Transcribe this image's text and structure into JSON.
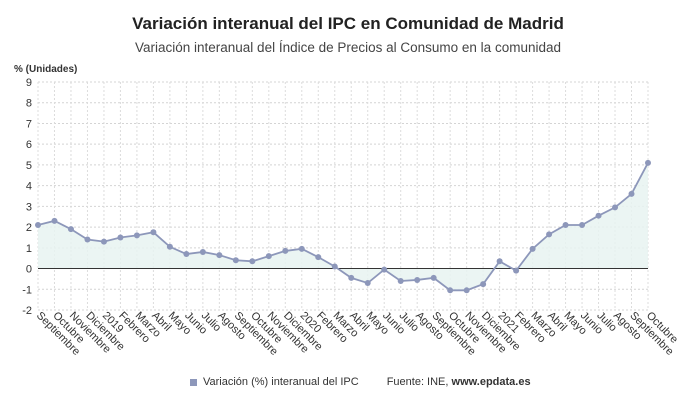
{
  "chart_data": {
    "type": "line",
    "title": "Variación interanual del IPC en Comunidad de Madrid",
    "subtitle": "Variación interanual del Índice de Precios al Consumo en la comunidad",
    "ylabel": "% (Unidades)",
    "ylim": [
      -2,
      9
    ],
    "yticks": [
      -2,
      -1,
      0,
      1,
      2,
      3,
      4,
      5,
      6,
      7,
      8,
      9
    ],
    "grid": true,
    "legend_position": "bottom",
    "categories": [
      "Septiembre",
      "Octubre",
      "Noviembre",
      "Diciembre",
      "2019",
      "Febrero",
      "Marzo",
      "Abril",
      "Mayo",
      "Junio",
      "Julio",
      "Agosto",
      "Septiembre",
      "Octubre",
      "Noviembre",
      "Diciembre",
      "2020",
      "Febrero",
      "Marzo",
      "Abril",
      "Mayo",
      "Junio",
      "Julio",
      "Agosto",
      "Septiembre",
      "Octubre",
      "Noviembre",
      "Diciembre",
      "2021",
      "Febrero",
      "Marzo",
      "Abril",
      "Mayo",
      "Junio",
      "Julio",
      "Agosto",
      "Septiembre",
      "Octubre"
    ],
    "series": [
      {
        "name": "Variación (%) interanual del IPC",
        "color": "#8d97ba",
        "values": [
          2.1,
          2.3,
          1.9,
          1.4,
          1.3,
          1.5,
          1.6,
          1.75,
          1.05,
          0.7,
          0.8,
          0.65,
          0.4,
          0.35,
          0.6,
          0.85,
          0.95,
          0.55,
          0.1,
          -0.45,
          -0.7,
          -0.05,
          -0.6,
          -0.55,
          -0.45,
          -1.05,
          -1.05,
          -0.75,
          0.35,
          -0.1,
          0.95,
          1.65,
          2.1,
          2.1,
          2.55,
          2.95,
          3.6,
          5.1
        ]
      }
    ]
  },
  "legend": {
    "series_label": "Variación (%) interanual del IPC",
    "source_label": "Fuente: INE, ",
    "source_site": "www.epdata.es"
  }
}
